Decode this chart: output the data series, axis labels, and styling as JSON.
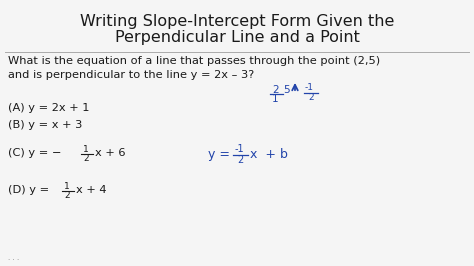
{
  "bg_color": "#f5f5f5",
  "title_color": "#1a1a1a",
  "body_color": "#1a1a1a",
  "hand_color": "#2244aa",
  "title_line1": "Writing Slope-Intercept Form Given the",
  "title_line2": "Perpendicular Line and a Point",
  "question_line1": "What is the equation of a line that passes through the point (2,5)",
  "question_line2": "and is perpendicular to the line y = 2x – 3?",
  "choice_A": "(A) y = 2x + 1",
  "choice_B": "(B) y = x + 3",
  "title_fontsize": 11.5,
  "body_fontsize": 8.2,
  "hand_fontsize": 9.0,
  "small_fontsize": 6.5
}
